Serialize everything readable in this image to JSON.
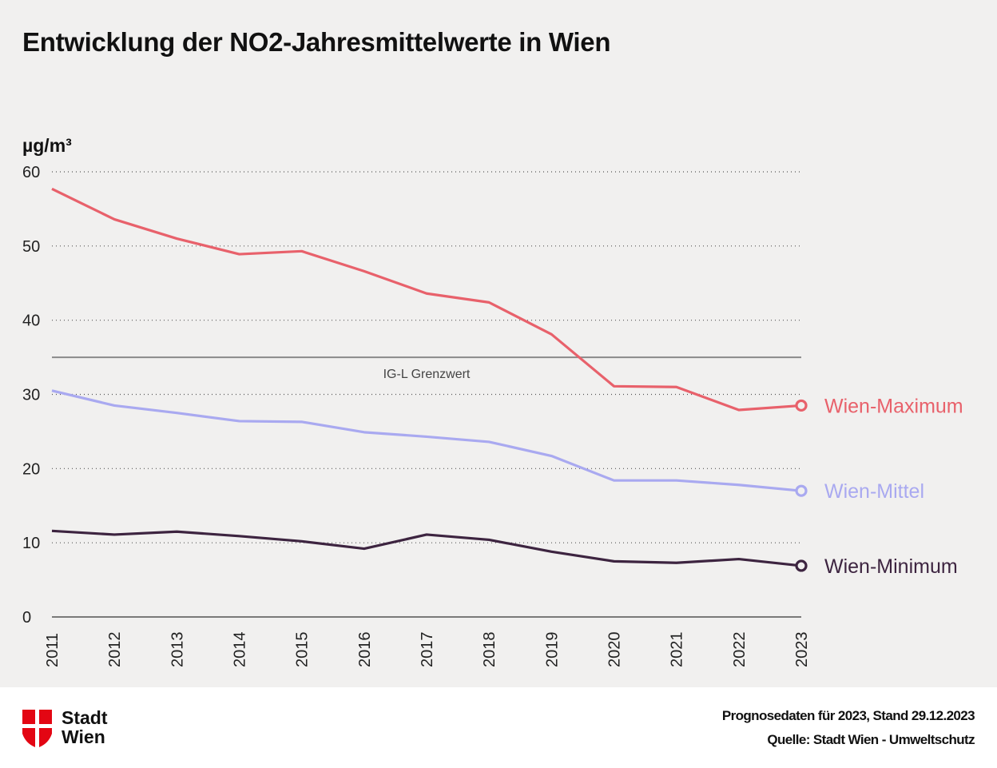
{
  "title": "Entwicklung der NO2-Jahresmittelwerte in Wien",
  "colors": {
    "max": "#e8616b",
    "mittel": "#a9a9f0",
    "min": "#3d2440",
    "background": "#f1f0ef",
    "limit": "#8a8a8a"
  },
  "chart_data": {
    "type": "line",
    "title": "Entwicklung der NO2-Jahresmittelwerte in Wien",
    "ylabel": "µg/m³",
    "xlabel": "",
    "x": [
      2011,
      2012,
      2013,
      2014,
      2015,
      2016,
      2017,
      2018,
      2019,
      2020,
      2021,
      2022,
      2023
    ],
    "xtick_labels": [
      "2011",
      "2012",
      "2013",
      "2014",
      "2015",
      "2016",
      "2017",
      "2018",
      "2019",
      "2020",
      "2021",
      "2022",
      "2023"
    ],
    "ylim": [
      0,
      60
    ],
    "yticks": [
      0,
      10,
      20,
      30,
      40,
      50,
      60
    ],
    "grid": "horizontal dotted",
    "legend": "right, end-of-line labels",
    "series": [
      {
        "name": "Wien-Maximum",
        "color": "#e8616b",
        "values": [
          57.7,
          53.6,
          51.0,
          48.9,
          49.3,
          46.6,
          43.6,
          42.4,
          38.1,
          31.1,
          31.0,
          27.9,
          28.5
        ]
      },
      {
        "name": "Wien-Mittel",
        "color": "#a9a9f0",
        "values": [
          30.5,
          28.5,
          27.5,
          26.4,
          26.3,
          24.9,
          24.3,
          23.6,
          21.7,
          18.4,
          18.4,
          17.8,
          17.0
        ]
      },
      {
        "name": "Wien-Minimum",
        "color": "#3d2440",
        "values": [
          11.6,
          11.1,
          11.5,
          10.9,
          10.2,
          9.2,
          11.1,
          10.4,
          8.8,
          7.5,
          7.3,
          7.8,
          6.9
        ]
      }
    ],
    "annotations": [
      {
        "text": "IG-L Grenzwert",
        "y": 35
      }
    ]
  },
  "footer": {
    "logo_line1": "Stadt",
    "logo_line2": "Wien",
    "note": "Prognosedaten für 2023, Stand 29.12.2023",
    "source": "Quelle: Stadt Wien - Umweltschutz"
  }
}
